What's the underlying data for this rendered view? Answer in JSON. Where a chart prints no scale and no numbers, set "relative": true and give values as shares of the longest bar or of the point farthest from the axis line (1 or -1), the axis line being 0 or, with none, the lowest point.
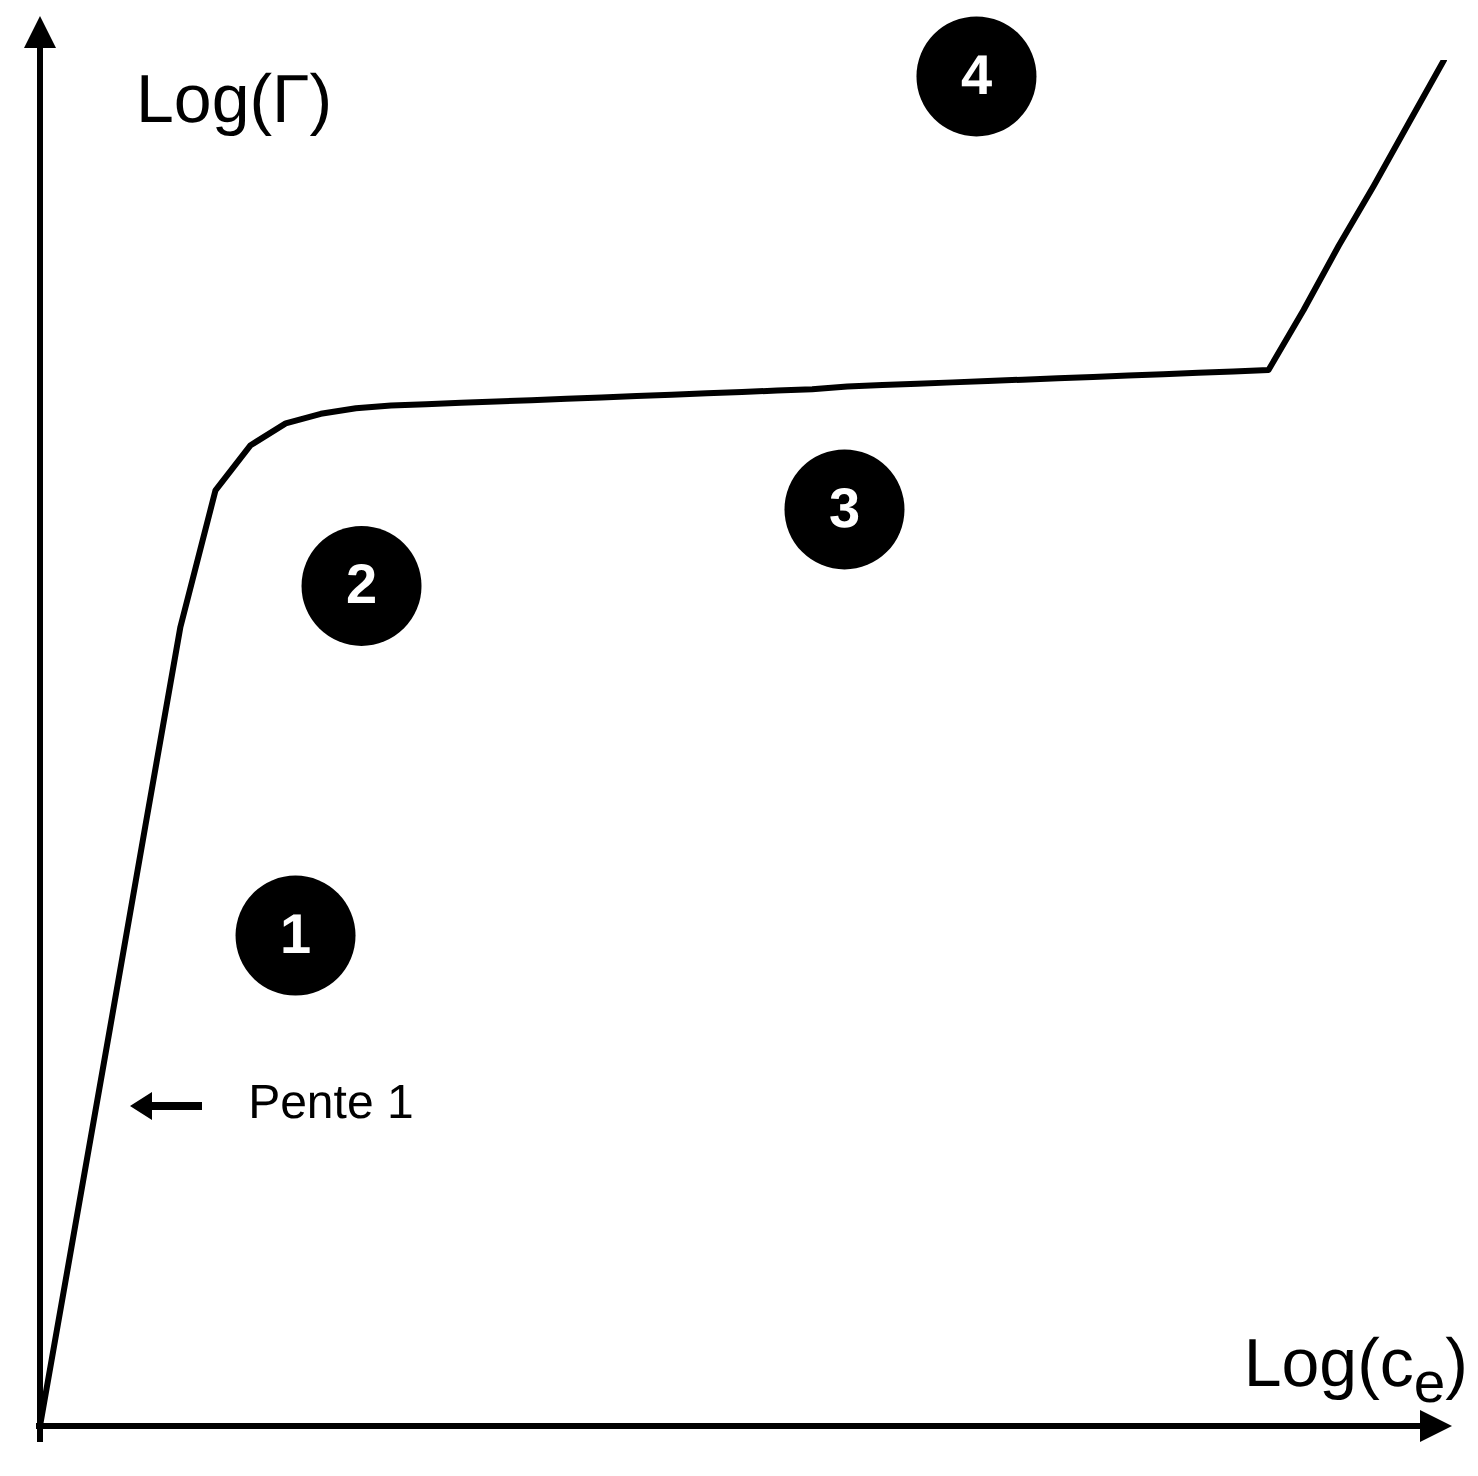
{
  "chart_data": {
    "type": "line",
    "relative": true,
    "xlabel": "Log(c$_{e}$)",
    "ylabel": "Log(Γ)",
    "marker": "none",
    "color": "#000000",
    "categories": [
      null,
      null,
      null,
      null,
      null,
      null,
      null,
      null,
      null,
      null,
      null,
      null,
      null,
      null,
      null,
      null,
      null,
      null,
      null,
      null,
      null,
      null,
      null,
      null,
      null,
      null,
      null,
      null,
      null,
      null,
      null,
      null,
      null,
      null,
      null,
      null,
      null,
      null,
      null,
      null,
      null
    ],
    "values": [
      0,
      0.146,
      0.292,
      0.439,
      0.585,
      0.685,
      0.718,
      0.734,
      0.741,
      0.745,
      0.747,
      0.748,
      0.749,
      0.75,
      0.751,
      0.752,
      0.753,
      0.754,
      0.755,
      0.756,
      0.757,
      0.758,
      0.759,
      0.761,
      0.762,
      0.763,
      0.764,
      0.765,
      0.766,
      0.767,
      0.768,
      0.769,
      0.77,
      0.771,
      0.772,
      0.773,
      0.817,
      0.864,
      0.908,
      0.954,
      1.0
    ],
    "annotations": [
      "1",
      "2",
      "3",
      "4",
      "Pente 1"
    ]
  }
}
